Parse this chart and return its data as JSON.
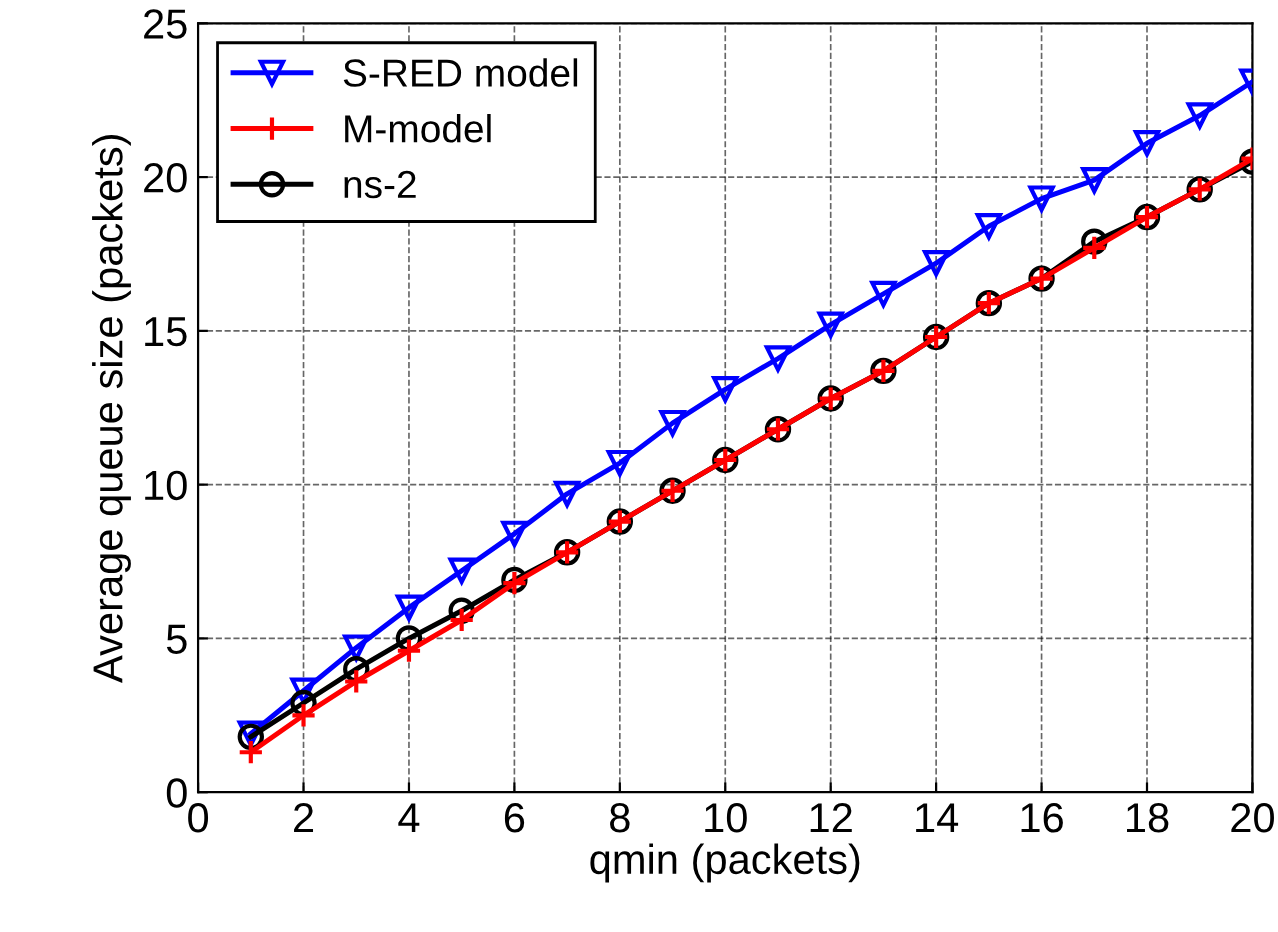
{
  "chart_data": {
    "type": "line",
    "xlabel": "qmin (packets)",
    "ylabel": "Average queue size (packets)",
    "x": [
      1,
      2,
      3,
      4,
      5,
      6,
      7,
      8,
      9,
      10,
      11,
      12,
      13,
      14,
      15,
      16,
      17,
      18,
      19,
      20
    ],
    "series": [
      {
        "name": "S-RED model",
        "color": "#0000ff",
        "marker": "triangle",
        "values": [
          1.9,
          3.3,
          4.7,
          6.0,
          7.2,
          8.4,
          9.7,
          10.7,
          12.0,
          13.1,
          14.1,
          15.2,
          16.2,
          17.2,
          18.4,
          19.3,
          19.9,
          21.1,
          22.0,
          23.1
        ]
      },
      {
        "name": "M-model",
        "color": "#ff0000",
        "marker": "cross",
        "values": [
          1.3,
          2.5,
          3.6,
          4.6,
          5.6,
          6.8,
          7.8,
          8.8,
          9.8,
          10.8,
          11.8,
          12.8,
          13.7,
          14.8,
          15.9,
          16.7,
          17.7,
          18.7,
          19.6,
          20.6
        ]
      },
      {
        "name": "ns-2",
        "color": "#000000",
        "marker": "circle",
        "values": [
          1.8,
          2.9,
          4.0,
          5.0,
          5.9,
          6.9,
          7.8,
          8.8,
          9.8,
          10.8,
          11.8,
          12.8,
          13.7,
          14.8,
          15.9,
          16.7,
          17.9,
          18.7,
          19.6,
          20.5
        ]
      }
    ],
    "xlim": [
      0,
      20
    ],
    "xticks": [
      0,
      2,
      4,
      6,
      8,
      10,
      12,
      14,
      16,
      18,
      20
    ],
    "ylim": [
      0,
      25
    ],
    "yticks": [
      0,
      5,
      10,
      15,
      20,
      25
    ],
    "grid": true,
    "legend": "top left",
    "line_style": "solid"
  }
}
